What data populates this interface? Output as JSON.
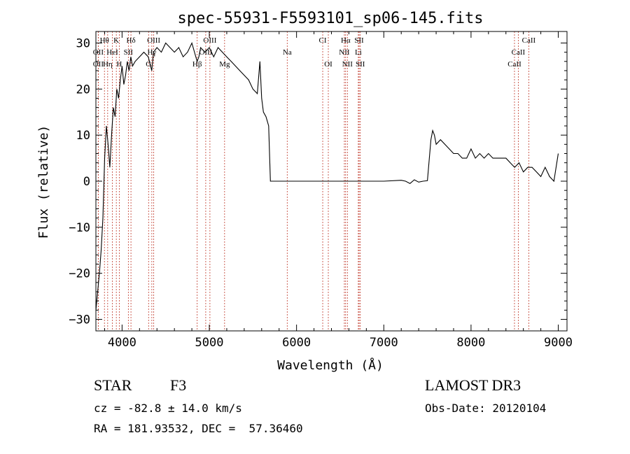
{
  "chart_data": {
    "type": "line",
    "title": "spec-55931-F5593101_sp06-145.fits",
    "xlabel": "Wavelength (Å)",
    "ylabel": "Flux (relative)",
    "xlim": [
      3700,
      9100
    ],
    "ylim": [
      -32.5,
      32.5
    ],
    "xticks": [
      4000,
      5000,
      6000,
      7000,
      8000,
      9000
    ],
    "yticks": [
      -30,
      -20,
      -10,
      0,
      10,
      20,
      30
    ],
    "grid": false,
    "series": [
      {
        "x": [
          3700,
          3720,
          3740,
          3760,
          3780,
          3800,
          3820,
          3840,
          3860,
          3880,
          3900,
          3920,
          3940,
          3960,
          3980,
          4000,
          4020,
          4040,
          4060,
          4080,
          4100,
          4120,
          4150,
          4200,
          4250,
          4300,
          4340,
          4360,
          4400,
          4450,
          4500,
          4550,
          4600,
          4650,
          4700,
          4750,
          4800,
          4860,
          4880,
          4900,
          4950,
          5000,
          5050,
          5100,
          5150,
          5200,
          5250,
          5300,
          5350,
          5400,
          5450,
          5500,
          5550,
          5580,
          5600,
          5620,
          5650,
          5680,
          5700,
          5720,
          5800,
          6000,
          6500,
          7000,
          7200,
          7250,
          7300,
          7350,
          7400,
          7450,
          7500,
          7540,
          7560,
          7580,
          7600,
          7650,
          7700,
          7750,
          7800,
          7850,
          7900,
          7950,
          8000,
          8050,
          8100,
          8150,
          8200,
          8250,
          8300,
          8350,
          8400,
          8450,
          8500,
          8550,
          8600,
          8650,
          8700,
          8750,
          8800,
          8850,
          8900,
          8950,
          9000
        ],
        "y": [
          -28,
          -24,
          -20,
          -15,
          -8,
          5,
          12,
          8,
          3,
          10,
          16,
          14,
          20,
          18,
          22,
          25,
          21,
          23,
          26,
          24,
          27,
          25,
          26,
          27,
          28,
          27,
          24,
          28,
          29,
          28,
          30,
          29,
          28,
          29,
          27,
          28,
          30,
          26,
          27,
          29,
          28,
          29,
          27,
          29,
          28,
          27,
          26,
          25,
          24,
          23,
          22,
          20,
          19,
          26,
          18,
          15,
          14,
          12,
          0,
          0,
          0,
          0,
          0,
          0,
          0.2,
          0,
          -0.5,
          0.3,
          -0.2,
          0,
          0.1,
          9,
          11,
          10,
          8,
          9,
          8,
          7,
          6,
          6,
          5,
          5,
          7,
          5,
          6,
          5,
          6,
          5,
          5,
          5,
          5,
          4,
          3,
          4,
          2,
          3,
          3,
          2,
          1,
          3,
          1,
          0,
          6
        ]
      }
    ],
    "lines": [
      {
        "label": "Hθ",
        "wave": 3798,
        "row": 1
      },
      {
        "label": "K",
        "wave": 3934,
        "row": 1
      },
      {
        "label": "Hδ",
        "wave": 4102,
        "row": 1
      },
      {
        "label": "OIII",
        "wave": 4363,
        "row": 1
      },
      {
        "label": "OIII",
        "wave": 5007,
        "row": 1
      },
      {
        "label": "CI",
        "wave": 6300,
        "row": 1
      },
      {
        "label": "Hα",
        "wave": 6563,
        "row": 1
      },
      {
        "label": "SII",
        "wave": 6717,
        "row": 1
      },
      {
        "label": "CaII",
        "wave": 8662,
        "row": 1
      },
      {
        "label": "OII",
        "wave": 3727,
        "row": 2
      },
      {
        "label": "HeI",
        "wave": 3889,
        "row": 2
      },
      {
        "label": "SII",
        "wave": 4072,
        "row": 2
      },
      {
        "label": "Hγ",
        "wave": 4341,
        "row": 2
      },
      {
        "label": "OIII",
        "wave": 4959,
        "row": 2
      },
      {
        "label": "Na",
        "wave": 5893,
        "row": 2
      },
      {
        "label": "NII",
        "wave": 6548,
        "row": 2
      },
      {
        "label": "Li",
        "wave": 6708,
        "row": 2
      },
      {
        "label": "CaII",
        "wave": 8542,
        "row": 2
      },
      {
        "label": "OII",
        "wave": 3727,
        "row": 3
      },
      {
        "label": "Hη",
        "wave": 3835,
        "row": 3
      },
      {
        "label": "H",
        "wave": 3968,
        "row": 3
      },
      {
        "label": "G",
        "wave": 4304,
        "row": 3
      },
      {
        "label": "Hβ",
        "wave": 4861,
        "row": 3
      },
      {
        "label": "Mg",
        "wave": 5175,
        "row": 3
      },
      {
        "label": "OI",
        "wave": 6364,
        "row": 3
      },
      {
        "label": "NII",
        "wave": 6583,
        "row": 3
      },
      {
        "label": "SII",
        "wave": 6731,
        "row": 3
      },
      {
        "label": "CaII",
        "wave": 8498,
        "row": 3
      }
    ]
  },
  "info": {
    "class": "STAR",
    "subclass": "F3",
    "survey": "LAMOST DR3",
    "cz": "cz = -82.8 ± 14.0 km/s",
    "obs_date": "Obs-Date: 20120104",
    "radec": "RA = 181.93532, DEC =  57.36460"
  },
  "colors": {
    "line_marker": "#c0392b",
    "spectrum": "#000000"
  }
}
